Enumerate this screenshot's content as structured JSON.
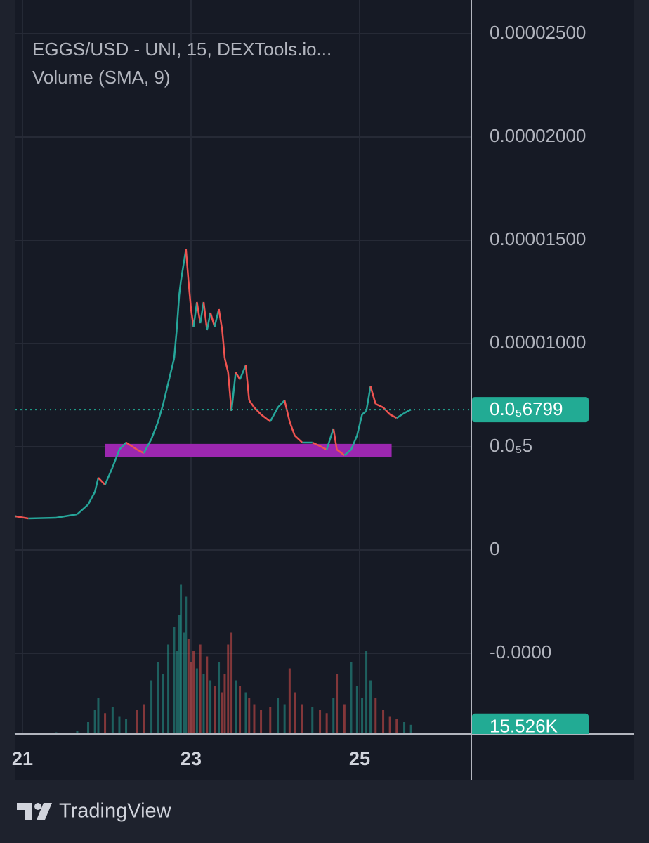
{
  "chart_data": {
    "type": "candlestick",
    "legend_lines": [
      "EGGS/USD - UNI, 15, DEXTools.io...",
      "Volume (SMA, 9)"
    ],
    "branding": "TradingView",
    "x": [
      20.92,
      21.07,
      21.4,
      21.65,
      21.78,
      21.86,
      21.9,
      21.98,
      22.07,
      22.15,
      22.23,
      22.36,
      22.44,
      22.53,
      22.61,
      22.67,
      22.73,
      22.8,
      22.83,
      22.86,
      22.88,
      22.92,
      22.94,
      22.97,
      23.0,
      23.03,
      23.07,
      23.11,
      23.15,
      23.19,
      23.23,
      23.28,
      23.33,
      23.37,
      23.4,
      23.44,
      23.48,
      23.53,
      23.58,
      23.65,
      23.69,
      23.75,
      23.83,
      23.94,
      24.03,
      24.11,
      24.17,
      24.23,
      24.32,
      24.44,
      24.53,
      24.61,
      24.69,
      24.73,
      24.82,
      24.9,
      24.97,
      25.03,
      25.08,
      25.13,
      25.19,
      25.28,
      25.36,
      25.44,
      25.53,
      25.61
    ],
    "series": [
      {
        "name": "EGGS/USD",
        "up_color": "#26a69a",
        "down_color": "#ef5350",
        "values": [
          1.633e-06,
          1.531e-06,
          1.565e-06,
          1.735e-06,
          2.211e-06,
          2.823e-06,
          3.503e-06,
          3.163e-06,
          4.014e-06,
          4.864e-06,
          5.204e-06,
          4.864e-06,
          4.694e-06,
          5.374e-06,
          6.224e-06,
          7.075e-06,
          8.095e-06,
          9.286e-06,
          1.0646e-05,
          1.2347e-05,
          1.3027e-05,
          1.4048e-05,
          1.4558e-05,
          1.3027e-05,
          1.1667e-05,
          1.0816e-05,
          1.2007e-05,
          1.0986e-05,
          1.2007e-05,
          1.0646e-05,
          1.1497e-05,
          1.0816e-05,
          1.1667e-05,
          1.0646e-05,
          9.286e-06,
          8.605e-06,
          6.735e-06,
          8.605e-06,
          8.265e-06,
          8.946e-06,
          7.245e-06,
          6.905e-06,
          6.565e-06,
          6.224e-06,
          6.905e-06,
          7.245e-06,
          6.224e-06,
          5.544e-06,
          5.204e-06,
          5.204e-06,
          5.034e-06,
          4.864e-06,
          5.884e-06,
          4.864e-06,
          4.592e-06,
          4.864e-06,
          5.544e-06,
          6.565e-06,
          6.735e-06,
          7.925e-06,
          7.075e-06,
          6.905e-06,
          6.565e-06,
          6.394e-06,
          6.633e-06,
          6.803e-06
        ]
      },
      {
        "name": "Volume",
        "axis": "volume",
        "values": [
          2000,
          1500,
          3000,
          5000,
          20000,
          40000,
          60000,
          35000,
          45000,
          30000,
          25000,
          40000,
          50000,
          90000,
          120000,
          100000,
          150000,
          180000,
          140000,
          200000,
          250000,
          170000,
          230000,
          160000,
          120000,
          140000,
          110000,
          150000,
          100000,
          130000,
          90000,
          80000,
          120000,
          70000,
          100000,
          150000,
          170000,
          90000,
          80000,
          70000,
          60000,
          50000,
          40000,
          45000,
          60000,
          50000,
          110000,
          70000,
          50000,
          45000,
          40000,
          35000,
          60000,
          100000,
          50000,
          120000,
          80000,
          60000,
          140000,
          90000,
          60000,
          40000,
          30000,
          25000,
          20000,
          15526
        ]
      }
    ],
    "xlim": [
      20.917,
      26.317
    ],
    "xticks": [
      21,
      23,
      25
    ],
    "ylim": [
      -8.912e-06,
      2.5885e-05
    ],
    "yticks": [
      {
        "value": 2.5e-05,
        "label": "0.00002500"
      },
      {
        "value": 2e-05,
        "label": "0.00002000"
      },
      {
        "value": 1.5e-05,
        "label": "0.00001500"
      },
      {
        "value": 1e-05,
        "label": "0.00001000"
      },
      {
        "value": 5e-06,
        "label": "0.0₅5"
      },
      0,
      {
        "value": -5e-06,
        "label": "-0.0000"
      }
    ],
    "volume_ylim": [
      0,
      300000
    ],
    "current_price": {
      "value": 6.799e-06,
      "label": "0.0₅6799",
      "color": "#22ab94"
    },
    "last_volume": {
      "value": 15526,
      "label": "15.526K",
      "color": "#22ab94"
    },
    "zone": {
      "x": [
        21.98,
        25.38
      ],
      "y": [
        4.49e-06,
        5.14e-06
      ],
      "color": "#9c27b0"
    },
    "grid": true
  }
}
